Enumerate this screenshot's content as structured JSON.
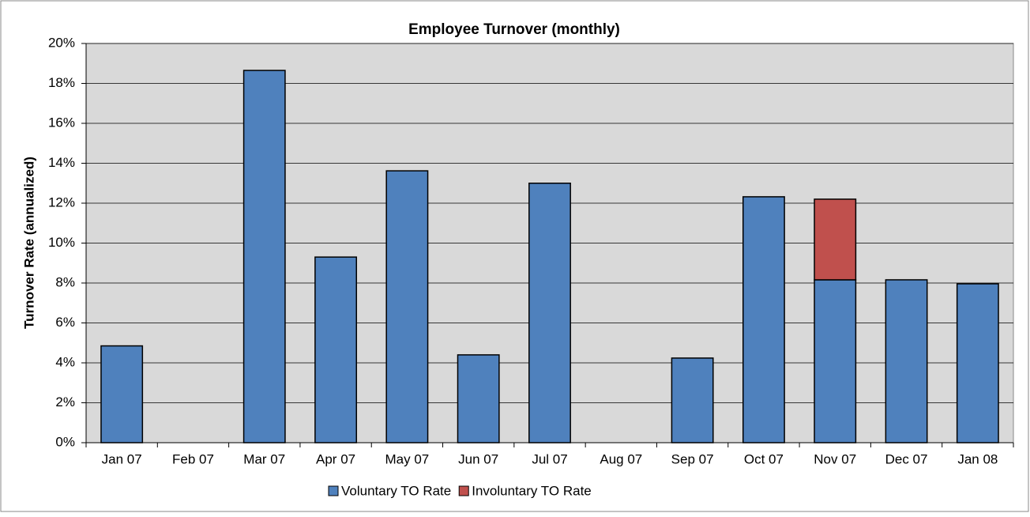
{
  "chart_data": {
    "type": "stacked_bar",
    "title": "Employee Turnover (monthly)",
    "y_label": "Turnover Rate (annualized)",
    "categories": [
      "Jan 07",
      "Feb 07",
      "Mar 07",
      "Apr 07",
      "May 07",
      "Jun 07",
      "Jul 07",
      "Aug 07",
      "Sep 07",
      "Oct 07",
      "Nov 07",
      "Dec 07",
      "Jan 08"
    ],
    "series": [
      {
        "name": "Voluntary TO Rate",
        "color": "#4f81bd",
        "values": [
          4.85,
          0,
          18.65,
          9.3,
          13.62,
          4.4,
          13.0,
          0,
          4.24,
          12.32,
          8.16,
          8.16,
          7.96
        ]
      },
      {
        "name": "Involuntary TO Rate",
        "color": "#c0504d",
        "values": [
          null,
          null,
          null,
          null,
          null,
          null,
          null,
          null,
          null,
          null,
          4.04,
          null,
          null
        ]
      }
    ],
    "ylim": [
      0,
      20
    ],
    "yticks": [
      {
        "value": 0,
        "label": "0%"
      },
      {
        "value": 2,
        "label": "2%"
      },
      {
        "value": 4,
        "label": "4%"
      },
      {
        "value": 6,
        "label": "6%"
      },
      {
        "value": 8,
        "label": "8%"
      },
      {
        "value": 10,
        "label": "10%"
      },
      {
        "value": 12,
        "label": "12%"
      },
      {
        "value": 14,
        "label": "14%"
      },
      {
        "value": 16,
        "label": "16%"
      },
      {
        "value": 18,
        "label": "18%"
      },
      {
        "value": 20,
        "label": "20%"
      }
    ],
    "grid": true,
    "legend": "bottom"
  }
}
